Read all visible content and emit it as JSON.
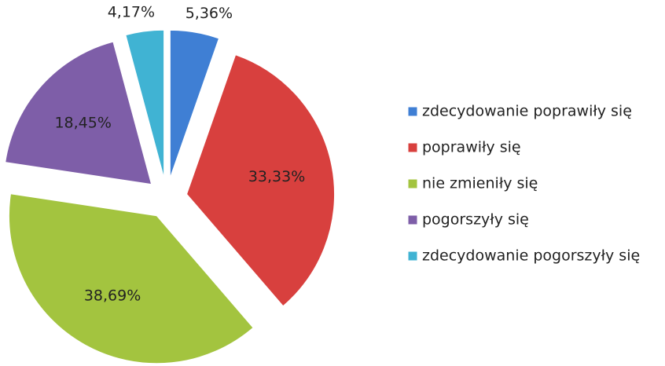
{
  "chart_data": {
    "type": "pie",
    "categories": [
      "zdecydowanie poprawiły się",
      "poprawiły się",
      "nie zmieniły się",
      "pogorszyły się",
      "zdecydowanie pogorszyły się"
    ],
    "values": [
      5.36,
      33.33,
      38.69,
      18.45,
      4.17
    ],
    "value_labels": [
      "5,36%",
      "33,33%",
      "38,69%",
      "18,45%",
      "4,17%"
    ],
    "colors": [
      "#3f7fd4",
      "#d8403e",
      "#a3c43f",
      "#7e5ea8",
      "#40b3d3"
    ],
    "legend": "right"
  }
}
